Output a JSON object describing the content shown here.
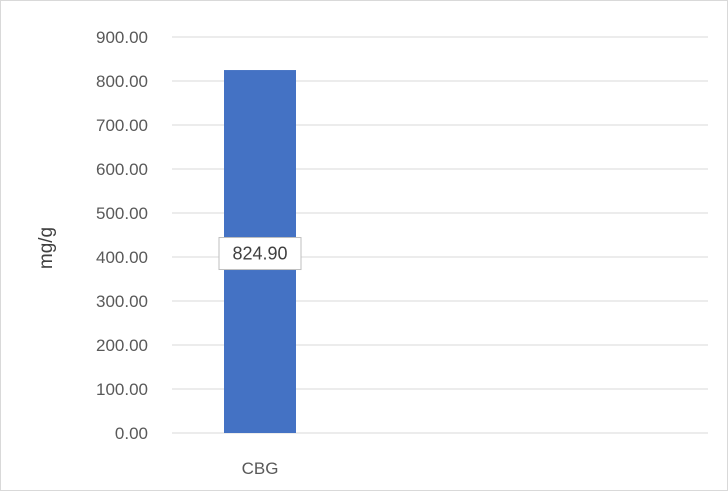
{
  "chart_data": {
    "type": "bar",
    "categories": [
      "CBG"
    ],
    "values": [
      824.9
    ],
    "value_labels": [
      "824.90"
    ],
    "ylabel": "mg/g",
    "ylim": [
      0,
      900
    ],
    "yticks": [
      "0.00",
      "100.00",
      "200.00",
      "300.00",
      "400.00",
      "500.00",
      "600.00",
      "700.00",
      "800.00",
      "900.00"
    ],
    "grid": true,
    "legend": "none",
    "colors": {
      "bar": "#4472c4",
      "grid": "#d9d9d9",
      "label_border": "#bfbfbf"
    }
  }
}
